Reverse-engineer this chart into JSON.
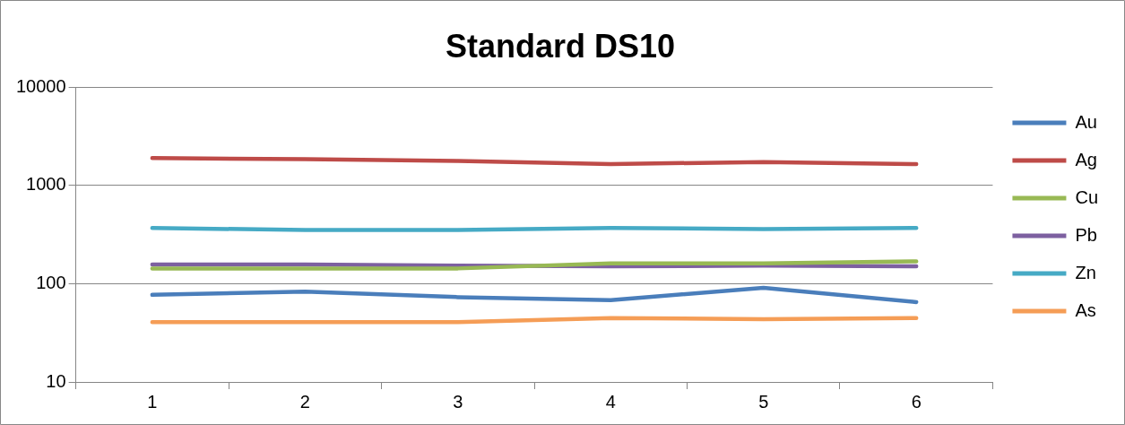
{
  "chart_data": {
    "type": "line",
    "title": "Standard DS10",
    "categories": [
      "1",
      "2",
      "3",
      "4",
      "5",
      "6"
    ],
    "series": [
      {
        "name": "Au",
        "color": "#4a7ebb",
        "values": [
          77,
          83,
          73,
          68,
          91,
          65
        ]
      },
      {
        "name": "Ag",
        "color": "#be4b48",
        "values": [
          1900,
          1850,
          1770,
          1650,
          1730,
          1650
        ]
      },
      {
        "name": "Cu",
        "color": "#98b954",
        "values": [
          143,
          143,
          143,
          161,
          161,
          169
        ]
      },
      {
        "name": "Pb",
        "color": "#7d60a0",
        "values": [
          157,
          157,
          153,
          150,
          153,
          150
        ]
      },
      {
        "name": "Zn",
        "color": "#46aac5",
        "values": [
          369,
          352,
          352,
          369,
          360,
          369
        ]
      },
      {
        "name": "As",
        "color": "#f59d56",
        "values": [
          40.6,
          40.6,
          40.6,
          44.6,
          43.6,
          44.6
        ]
      }
    ],
    "log": "y",
    "ylim": [
      10,
      10000
    ],
    "yticks": [
      10,
      100,
      1000,
      10000
    ],
    "grid": "y",
    "legend": "right",
    "marker": "none",
    "line_style": "solid"
  }
}
